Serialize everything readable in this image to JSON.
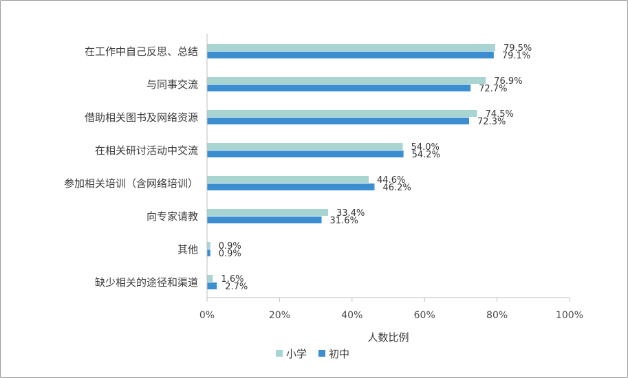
{
  "chart_data": {
    "type": "bar",
    "orientation": "horizontal",
    "categories": [
      "在工作中自己反思、总结",
      "与同事交流",
      "借助相关图书及网络资源",
      "在相关研讨活动中交流",
      "参加相关培训（含网络培训）",
      "向专家请教",
      "其他",
      "缺少相关的途径和渠道"
    ],
    "series": [
      {
        "name": "小学",
        "color": "#a8d4d2",
        "values": [
          79.5,
          76.9,
          74.5,
          54.0,
          44.6,
          33.4,
          0.9,
          1.6
        ],
        "labels": [
          "79.5%",
          "76.9%",
          "74.5%",
          "54.0%",
          "44.6%",
          "33.4%",
          "0.9%",
          "1.6%"
        ]
      },
      {
        "name": "初中",
        "color": "#3b8fd1",
        "values": [
          79.1,
          72.7,
          72.3,
          54.2,
          46.2,
          31.6,
          0.9,
          2.7
        ],
        "labels": [
          "79.1%",
          "72.7%",
          "72.3%",
          "54.2%",
          "46.2%",
          "31.6%",
          "0.9%",
          "2.7%"
        ]
      }
    ],
    "xlabel": "人数比例",
    "xlim": [
      0,
      100
    ],
    "xticks": [
      "0%",
      "20%",
      "40%",
      "60%",
      "80%",
      "100%"
    ],
    "grid": false,
    "legend_position": "bottom"
  }
}
